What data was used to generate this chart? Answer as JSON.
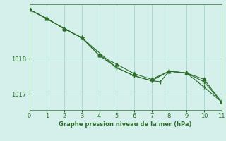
{
  "xlabel": "Graphe pression niveau de la mer (hPa)",
  "background_color": "#d5f0eb",
  "grid_color": "#aad8d3",
  "line_color": "#2d6e2d",
  "xlim": [
    0,
    11
  ],
  "ylim_min": 1016.55,
  "ylim_max": 1019.55,
  "yticks": [
    1017,
    1018
  ],
  "xticks": [
    0,
    1,
    2,
    3,
    4,
    5,
    6,
    7,
    8,
    9,
    10,
    11
  ],
  "series": [
    {
      "x": [
        0,
        1,
        2,
        3,
        4,
        5,
        6,
        7,
        8,
        9,
        10,
        11
      ],
      "y": [
        1019.4,
        1019.15,
        1018.85,
        1018.6,
        1018.1,
        1017.85,
        1017.58,
        1017.42,
        1017.65,
        1017.6,
        1017.42,
        1016.78
      ],
      "marker": "^"
    },
    {
      "x": [
        0,
        1,
        2,
        3,
        4,
        5,
        6,
        7,
        8,
        9,
        10,
        11
      ],
      "y": [
        1019.4,
        1019.15,
        1018.85,
        1018.6,
        1018.1,
        1017.75,
        1017.52,
        1017.38,
        1017.65,
        1017.6,
        1017.35,
        1016.78
      ],
      "marker": "+"
    },
    {
      "x": [
        0,
        3,
        5,
        6,
        7,
        7.5,
        8,
        9,
        10,
        11
      ],
      "y": [
        1019.4,
        1018.6,
        1017.75,
        1017.52,
        1017.38,
        1017.35,
        1017.65,
        1017.6,
        1017.2,
        1016.78
      ],
      "marker": "+"
    }
  ]
}
